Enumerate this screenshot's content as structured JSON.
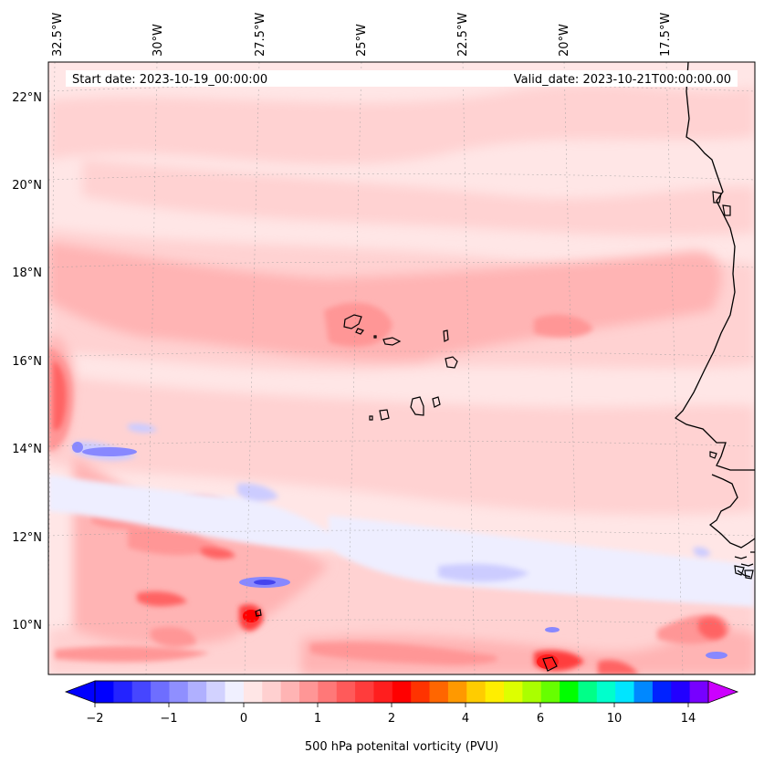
{
  "map": {
    "start_date": "Start date: 2023-10-19_00:00:00",
    "valid_date": "Valid_date: 2023-10-21T00:00:00.00",
    "lon_labels": [
      "32.5°W",
      "30°W",
      "27.5°W",
      "25°W",
      "22.5°W",
      "20°W",
      "17.5°W"
    ],
    "lat_labels": [
      "22°N",
      "20°N",
      "18°N",
      "16°N",
      "14°N",
      "12°N",
      "10°N"
    ],
    "field_colors": {
      "background": "#ffe6e6",
      "pale": "#ffd2d2",
      "light": "#ffb4b4",
      "medium": "#ff9696",
      "strong": "#ff6464",
      "stronger": "#ff3c3c",
      "peak": "#ff0000",
      "neg_light": "#eeeeff",
      "neg_medium": "#ccccff",
      "neg_strong": "#8888ff",
      "neg_peak": "#4444ee"
    }
  },
  "colorbar": {
    "label": "500 hPa potenital vorticity (PVU)",
    "tick_labels": [
      "−2",
      "−1",
      "0",
      "1",
      "2",
      "4",
      "6",
      "10",
      "14"
    ],
    "colors": [
      "#0000ff",
      "#2323ff",
      "#4646ff",
      "#6e6eff",
      "#8f8fff",
      "#b0b0ff",
      "#d2d2ff",
      "#f0f0ff",
      "#ffe6e6",
      "#ffd0d0",
      "#ffb4b4",
      "#ff9696",
      "#ff7878",
      "#ff5a5a",
      "#ff3c3c",
      "#ff1e1e",
      "#ff0000",
      "#ff3300",
      "#ff6600",
      "#ff9900",
      "#ffcc00",
      "#ffee00",
      "#ddff00",
      "#aaff00",
      "#66ff00",
      "#00ff00",
      "#00ff88",
      "#00ffcc",
      "#00e5ff",
      "#0088ff",
      "#0022ff",
      "#2200ff",
      "#7700ff"
    ],
    "extend_low_color": "#0000ff",
    "extend_high_color": "#cc00ff"
  }
}
